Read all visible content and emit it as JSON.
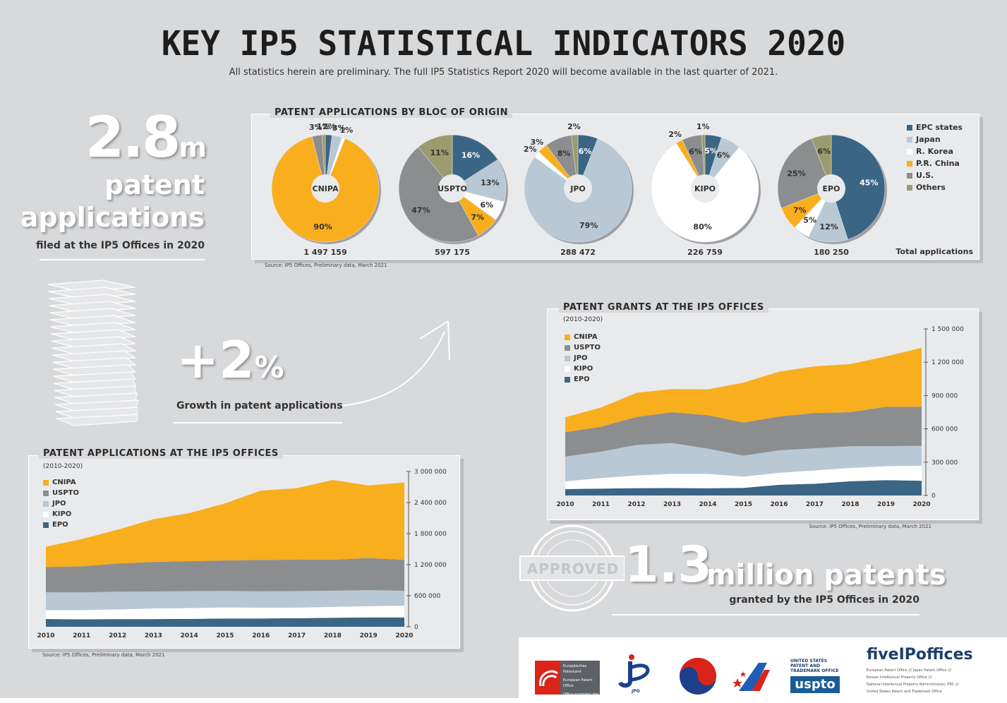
{
  "header": {
    "title": "KEY IP5 STATISTICAL INDICATORS 2020",
    "subtitle": "All statistics herein are preliminary. The full IP5 Statistics Report 2020 will become available in the last quarter of 2021."
  },
  "headline_applications": {
    "number": "2.8",
    "unit": "m",
    "line1": "patent",
    "line2": "applications",
    "caption": "filed at the IP5 Offices in 2020"
  },
  "growth": {
    "value": "+2",
    "unit": "%",
    "caption": "Growth in patent applications"
  },
  "headline_grants": {
    "number": "1.3",
    "text": "million patents",
    "caption": "granted by the IP5 Offices in 2020",
    "stamp": "APPROVED"
  },
  "colors": {
    "EPC states": "#3b6584",
    "Japan": "#b8c8d4",
    "R. Korea": "#ffffff",
    "P.R. China": "#f9ae1d",
    "U.S.": "#8c8d8f",
    "Others": "#9c9b6e"
  },
  "chart_data": [
    {
      "type": "pie",
      "title": "PATENT APPLICATIONS BY BLOC OF ORIGIN",
      "legend": [
        "EPC states",
        "Japan",
        "R. Korea",
        "P.R. China",
        "U.S.",
        "Others"
      ],
      "total_label": "Total applications",
      "source": "Source: IP5 Offices, Preliminary data, March 2021",
      "offices": [
        {
          "name": "CNIPA",
          "total": "1 497 159",
          "slices": [
            {
              "label": "EPC states",
              "value": 2
            },
            {
              "label": "Japan",
              "value": 3
            },
            {
              "label": "R. Korea",
              "value": 1
            },
            {
              "label": "P.R. China",
              "value": 90
            },
            {
              "label": "U.S.",
              "value": 3
            },
            {
              "label": "Others",
              "value": 1
            }
          ]
        },
        {
          "name": "USPTO",
          "total": "597 175",
          "slices": [
            {
              "label": "EPC states",
              "value": 16
            },
            {
              "label": "Japan",
              "value": 13
            },
            {
              "label": "R. Korea",
              "value": 6
            },
            {
              "label": "P.R. China",
              "value": 7
            },
            {
              "label": "U.S.",
              "value": 47
            },
            {
              "label": "Others",
              "value": 11
            }
          ]
        },
        {
          "name": "JPO",
          "total": "288 472",
          "slices": [
            {
              "label": "EPC states",
              "value": 6
            },
            {
              "label": "Japan",
              "value": 79
            },
            {
              "label": "R. Korea",
              "value": 2
            },
            {
              "label": "P.R. China",
              "value": 3
            },
            {
              "label": "U.S.",
              "value": 8
            },
            {
              "label": "Others",
              "value": 2
            }
          ]
        },
        {
          "name": "KIPO",
          "total": "226 759",
          "slices": [
            {
              "label": "EPC states",
              "value": 5
            },
            {
              "label": "Japan",
              "value": 6
            },
            {
              "label": "R. Korea",
              "value": 80
            },
            {
              "label": "P.R. China",
              "value": 2
            },
            {
              "label": "U.S.",
              "value": 6
            },
            {
              "label": "Others",
              "value": 1
            }
          ]
        },
        {
          "name": "EPO",
          "total": "180 250",
          "slices": [
            {
              "label": "EPC states",
              "value": 45
            },
            {
              "label": "Japan",
              "value": 12
            },
            {
              "label": "R. Korea",
              "value": 5
            },
            {
              "label": "P.R. China",
              "value": 7
            },
            {
              "label": "U.S.",
              "value": 25
            },
            {
              "label": "Others",
              "value": 6
            }
          ]
        }
      ]
    },
    {
      "type": "area",
      "title": "PATENT APPLICATIONS AT THE IP5 OFFICES",
      "subtitle": "(2010-2020)",
      "source": "Source: IP5 Offices, Preliminary data, March 2021",
      "x": [
        "2010",
        "2011",
        "2012",
        "2013",
        "2014",
        "2015",
        "2016",
        "2017",
        "2018",
        "2019",
        "2020"
      ],
      "ylim": [
        0,
        3000000
      ],
      "yticks": [
        "0",
        "600 000",
        "1 200 000",
        "1 800 000",
        "2 400 000",
        "3 000 000"
      ],
      "legend": [
        "CNIPA",
        "USPTO",
        "JPO",
        "KIPO",
        "EPO"
      ],
      "series": [
        {
          "name": "EPO",
          "values": [
            150000,
            143000,
            148000,
            148000,
            152000,
            160000,
            160000,
            166000,
            174000,
            181000,
            180000
          ]
        },
        {
          "name": "KIPO",
          "values": [
            171000,
            178000,
            188000,
            205000,
            210000,
            213000,
            208000,
            204000,
            210000,
            218000,
            227000
          ]
        },
        {
          "name": "JPO",
          "values": [
            345000,
            343000,
            343000,
            328000,
            326000,
            319000,
            318000,
            318000,
            313000,
            308000,
            288000
          ]
        },
        {
          "name": "USPTO",
          "values": [
            490000,
            504000,
            543000,
            571000,
            579000,
            589000,
            606000,
            607000,
            597000,
            621000,
            597000
          ]
        },
        {
          "name": "CNIPA",
          "values": [
            391000,
            526000,
            653000,
            825000,
            928000,
            1102000,
            1339000,
            1382000,
            1542000,
            1401000,
            1497000
          ]
        }
      ]
    },
    {
      "type": "area",
      "title": "PATENT GRANTS AT THE IP5 OFFICES",
      "subtitle": "(2010-2020)",
      "source": "Source: IP5 Offices, Preliminary data, March 2021",
      "x": [
        "2010",
        "2011",
        "2012",
        "2013",
        "2014",
        "2015",
        "2016",
        "2017",
        "2018",
        "2019",
        "2020"
      ],
      "ylim": [
        0,
        1500000
      ],
      "yticks": [
        "0",
        "300 000",
        "600 000",
        "900 000",
        "1 200 000",
        "1 500 000"
      ],
      "legend": [
        "CNIPA",
        "USPTO",
        "JPO",
        "KIPO",
        "EPO"
      ],
      "series": [
        {
          "name": "EPO",
          "values": [
            58000,
            62000,
            66000,
            67000,
            65000,
            68000,
            96000,
            106000,
            128000,
            138000,
            133000
          ]
        },
        {
          "name": "KIPO",
          "values": [
            69000,
            95000,
            114000,
            128000,
            130000,
            102000,
            108000,
            120000,
            120000,
            126000,
            135000
          ]
        },
        {
          "name": "JPO",
          "values": [
            223000,
            238000,
            275000,
            277000,
            227000,
            189000,
            203000,
            199000,
            195000,
            180000,
            180000
          ]
        },
        {
          "name": "USPTO",
          "values": [
            220000,
            224000,
            253000,
            278000,
            301000,
            298000,
            304000,
            318000,
            308000,
            355000,
            351000
          ]
        },
        {
          "name": "CNIPA",
          "values": [
            135000,
            172000,
            217000,
            208000,
            233000,
            359000,
            404000,
            420000,
            432000,
            453000,
            531000
          ]
        }
      ]
    }
  ],
  "logos": {
    "epo": [
      "Europäisches Patentamt",
      "European Patent Office",
      "Office européen des brevets"
    ],
    "jpo": "JPO",
    "uspto_text": "UNITED STATES PATENT AND TRADEMARK OFFICE",
    "uspto": "uspto",
    "fiveipo": "fiveIPoffices",
    "fiveipo_lines": [
      "European Patent Office /// Japan Patent Office ///",
      "Korean Intellectual Property Office ///",
      "National Intellectual Property Administration, PRC ///",
      "United States Patent and Trademark Office"
    ]
  }
}
